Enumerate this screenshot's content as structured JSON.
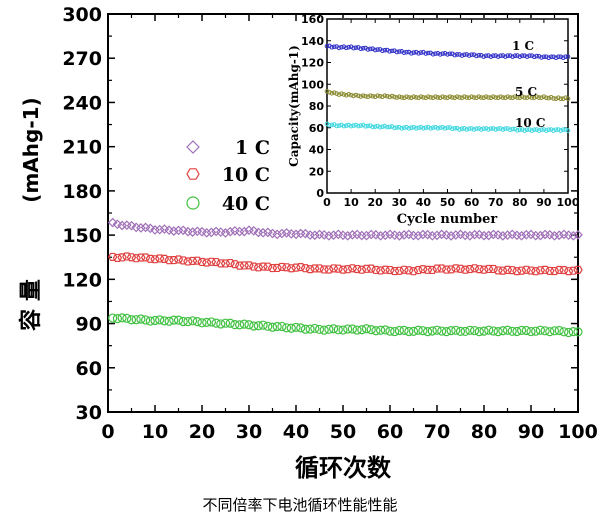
{
  "caption": "不同倍率下电池循环性能性能",
  "chart_data": [
    {
      "type": "scatter",
      "title": "",
      "xlabel": "循环次数",
      "ylabel_cn": "容 量",
      "ylabel_unit": "(mAhg-1)",
      "xlim": [
        0,
        100
      ],
      "ylim": [
        30,
        300
      ],
      "xticks": [
        0,
        10,
        20,
        30,
        40,
        50,
        60,
        70,
        80,
        90,
        100
      ],
      "yticks": [
        30,
        60,
        90,
        120,
        150,
        180,
        210,
        240,
        270,
        300
      ],
      "legend_position": "left-middle",
      "grid": false,
      "series": [
        {
          "name": "1 C",
          "marker": "diamond",
          "color": "#a070b8",
          "x": [
            1,
            5,
            10,
            15,
            20,
            25,
            30,
            35,
            40,
            45,
            50,
            55,
            60,
            65,
            70,
            75,
            80,
            85,
            90,
            95,
            100
          ],
          "values": [
            158,
            156,
            154,
            153,
            152,
            152,
            153,
            151,
            151,
            150,
            150,
            150,
            150,
            150,
            150,
            150,
            150,
            150,
            150,
            150,
            150
          ]
        },
        {
          "name": "10 C",
          "marker": "hexagon",
          "color": "#e04040",
          "x": [
            1,
            5,
            10,
            15,
            20,
            25,
            30,
            35,
            40,
            45,
            50,
            55,
            60,
            65,
            70,
            75,
            80,
            85,
            90,
            95,
            100
          ],
          "values": [
            135,
            135,
            134,
            133,
            132,
            131,
            129,
            128,
            128,
            127,
            127,
            127,
            126,
            126,
            127,
            127,
            127,
            126,
            126,
            126,
            126
          ]
        },
        {
          "name": "40 C",
          "marker": "circle",
          "color": "#40c040",
          "x": [
            1,
            5,
            10,
            15,
            20,
            25,
            30,
            35,
            40,
            45,
            50,
            55,
            60,
            65,
            70,
            75,
            80,
            85,
            90,
            95,
            100
          ],
          "values": [
            94,
            93,
            92,
            92,
            91,
            90,
            89,
            88,
            87,
            86,
            86,
            86,
            85,
            85,
            85,
            85,
            85,
            85,
            85,
            85,
            84
          ]
        }
      ]
    },
    {
      "type": "scatter",
      "title": "",
      "xlabel": "Cycle number",
      "ylabel": "Capacity(mAhg-1)",
      "xlim": [
        0,
        100
      ],
      "ylim": [
        0,
        160
      ],
      "xticks": [
        0,
        10,
        20,
        30,
        40,
        50,
        60,
        70,
        80,
        90,
        100
      ],
      "yticks": [
        0,
        20,
        40,
        60,
        80,
        100,
        120,
        140,
        160
      ],
      "grid": false,
      "series": [
        {
          "name": "1 C",
          "color": "#3030c8",
          "x": [
            0,
            5,
            10,
            15,
            20,
            25,
            30,
            35,
            40,
            45,
            50,
            55,
            60,
            65,
            70,
            75,
            80,
            85,
            90,
            95,
            100
          ],
          "values": [
            135,
            134,
            134,
            133,
            132,
            131,
            130,
            129,
            129,
            128,
            128,
            127,
            127,
            126,
            126,
            126,
            126,
            126,
            125,
            125,
            125
          ]
        },
        {
          "name": "5 C",
          "color": "#8a8a30",
          "x": [
            0,
            5,
            10,
            15,
            20,
            25,
            30,
            35,
            40,
            45,
            50,
            55,
            60,
            65,
            70,
            75,
            80,
            85,
            90,
            95,
            100
          ],
          "values": [
            93,
            91,
            90,
            89,
            89,
            89,
            88,
            88,
            88,
            88,
            88,
            88,
            88,
            88,
            88,
            88,
            88,
            88,
            88,
            87,
            87
          ]
        },
        {
          "name": "10 C",
          "color": "#40d8e0",
          "x": [
            0,
            5,
            10,
            15,
            20,
            25,
            30,
            35,
            40,
            45,
            50,
            55,
            60,
            65,
            70,
            75,
            80,
            85,
            90,
            95,
            100
          ],
          "values": [
            63,
            62,
            62,
            62,
            61,
            61,
            60,
            60,
            60,
            60,
            60,
            59,
            59,
            59,
            59,
            59,
            58,
            58,
            58,
            58,
            58
          ]
        }
      ]
    }
  ]
}
